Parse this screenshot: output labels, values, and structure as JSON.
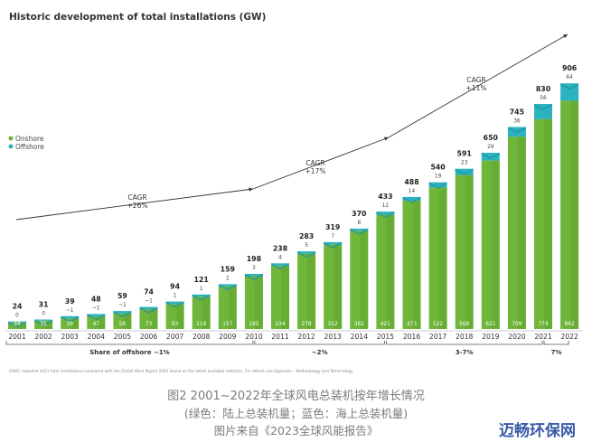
{
  "chart_data": {
    "type": "bar",
    "title": "Historic development of total installations (GW)",
    "categories": [
      "2001",
      "2002",
      "2003",
      "2004",
      "2005",
      "2006",
      "2007",
      "2008",
      "2009",
      "2010",
      "2011",
      "2012",
      "2013",
      "2014",
      "2015",
      "2016",
      "2017",
      "2018",
      "2019",
      "2020",
      "2021",
      "2022"
    ],
    "totals": [
      24,
      31,
      39,
      48,
      59,
      74,
      94,
      121,
      159,
      198,
      238,
      283,
      319,
      370,
      433,
      488,
      540,
      591,
      650,
      745,
      830,
      906
    ],
    "series": [
      {
        "name": "Onshore",
        "color": "#6fb63a",
        "values": [
          24,
          31,
          39,
          47,
          58,
          73,
          93,
          119,
          157,
          195,
          234,
          278,
          312,
          362,
          421,
          473,
          522,
          568,
          621,
          709,
          774,
          842
        ]
      },
      {
        "name": "Offshore",
        "color": "#2bb3c0",
        "values": [
          0,
          0,
          1,
          1,
          1,
          1,
          1,
          1,
          2,
          3,
          4,
          5,
          7,
          8,
          12,
          14,
          19,
          23,
          29,
          36,
          56,
          64
        ]
      }
    ],
    "onshore_labels": [
      "24",
      "31",
      "39",
      "47",
      "58",
      "73",
      "93",
      "119",
      "157",
      "195",
      "234",
      "278",
      "312",
      "362",
      "421",
      "473",
      "522",
      "568",
      "621",
      "709",
      "774",
      "842"
    ],
    "offshore_labels": [
      "0",
      "0",
      "~1",
      "~1",
      "~1",
      "~1",
      "1",
      "1",
      "2",
      "3",
      "4",
      "5",
      "7",
      "8",
      "12",
      "14",
      "19",
      "23",
      "29",
      "36",
      "56",
      "64"
    ],
    "legend": {
      "position": "left",
      "items": [
        "Onshore",
        "Offshore"
      ]
    },
    "cagr": [
      {
        "label": "CAGR",
        "value": "+26%"
      },
      {
        "label": "CAGR",
        "value": "+17%"
      },
      {
        "label": "CAGR",
        "value": "+11%"
      }
    ],
    "offshore_share": [
      {
        "label": "Share of offshore ~1%",
        "from": "2001",
        "to": "2010"
      },
      {
        "label": "~2%",
        "from": "2010",
        "to": "2015"
      },
      {
        "label": "3-7%",
        "from": "2015",
        "to": "2021"
      },
      {
        "label": "7%",
        "from": "2021",
        "to": "2022"
      }
    ],
    "footnote": "GWEC adjusted 2021 total installations compared with the Global Wind Report 2022 based on the latest available statistics. For details see Appendix – Methodology and Terminology"
  },
  "caption": {
    "line1": "图2  2001~2022年全球风电总装机按年增长情况",
    "line2": "(绿色：陆上总装机量；蓝色：海上总装机量)",
    "line3": "图片来自《2023全球风能报告》"
  },
  "watermark": "迈畅环保网"
}
